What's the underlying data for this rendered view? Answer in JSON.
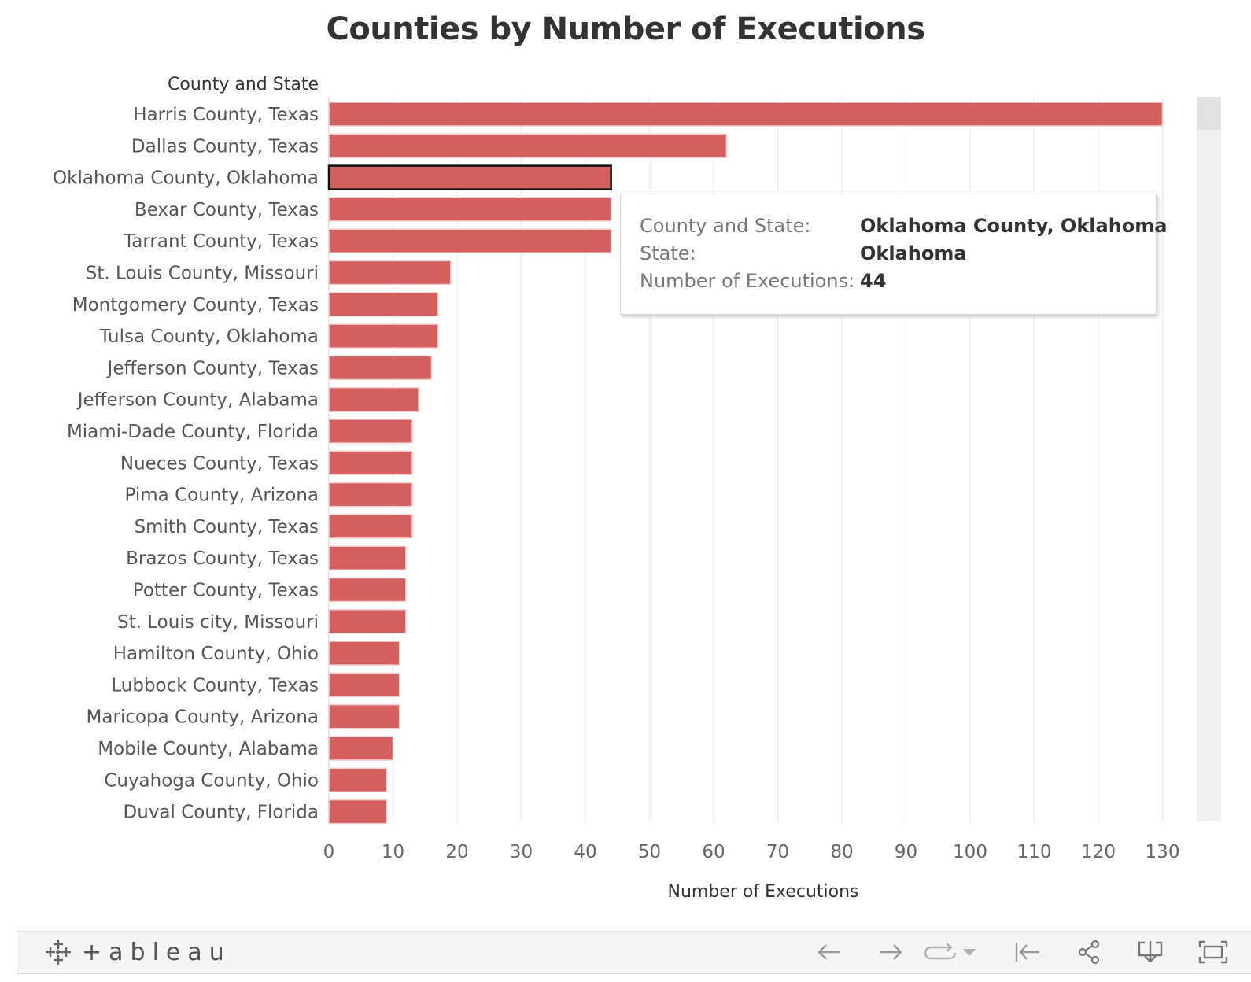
{
  "chart_data": {
    "type": "bar",
    "orientation": "horizontal",
    "title": "Counties by Number of Executions",
    "category_header": "County and State",
    "xlabel": "Number of Executions",
    "xlim": [
      0,
      135
    ],
    "xticks": [
      0,
      10,
      20,
      30,
      40,
      50,
      60,
      70,
      80,
      90,
      100,
      110,
      120,
      130
    ],
    "bar_color": "#d35f5f",
    "highlight_index": 2,
    "categories": [
      "Harris County, Texas",
      "Dallas County, Texas",
      "Oklahoma County, Oklahoma",
      "Bexar County, Texas",
      "Tarrant County, Texas",
      "St. Louis County, Missouri",
      "Montgomery County, Texas",
      "Tulsa County, Oklahoma",
      "Jefferson County, Texas",
      "Jefferson County, Alabama",
      "Miami-Dade County, Florida",
      "Nueces County, Texas",
      "Pima County, Arizona",
      "Smith County, Texas",
      "Brazos County, Texas",
      "Potter County, Texas",
      "St. Louis city, Missouri",
      "Hamilton County, Ohio",
      "Lubbock County, Texas",
      "Maricopa County, Arizona",
      "Mobile County, Alabama",
      "Cuyahoga County, Ohio",
      "Duval County, Florida"
    ],
    "values": [
      130,
      62,
      44,
      44,
      44,
      19,
      17,
      17,
      16,
      14,
      13,
      13,
      13,
      13,
      12,
      12,
      12,
      11,
      11,
      11,
      10,
      9,
      9
    ]
  },
  "tooltip": {
    "rows": [
      {
        "key": "County and State:",
        "value": "Oklahoma County, Oklahoma"
      },
      {
        "key": "State:",
        "value": "Oklahoma"
      },
      {
        "key": "Number of Executions:",
        "value": "44"
      }
    ]
  },
  "toolbar": {
    "logo_text": "+ableau",
    "buttons": [
      "undo-icon",
      "redo-icon",
      "revert-icon",
      "revert-dropdown-icon",
      "reset-icon",
      "share-icon",
      "download-icon",
      "fullscreen-icon"
    ]
  }
}
